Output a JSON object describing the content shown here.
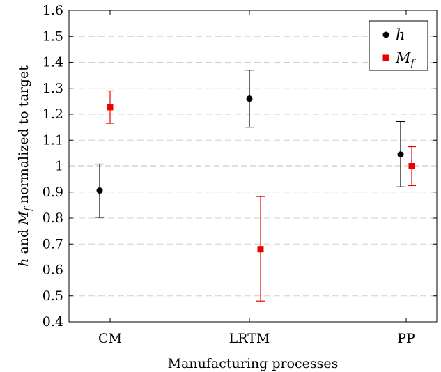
{
  "chart_data": {
    "type": "scatter",
    "categories": [
      "CM",
      "LRTM",
      "PP"
    ],
    "series": [
      {
        "name": "h",
        "label_main": "h",
        "label_sub": "",
        "color": "#000000",
        "marker": "circle",
        "values": [
          0.906,
          1.26,
          1.045
        ],
        "err_low": [
          0.803,
          1.15,
          0.92
        ],
        "err_high": [
          1.008,
          1.37,
          1.172
        ]
      },
      {
        "name": "Mf",
        "label_main": "M",
        "label_sub": "f",
        "color": "#ee0000",
        "marker": "square",
        "values": [
          1.227,
          0.68,
          1.0
        ],
        "err_low": [
          1.165,
          0.48,
          0.925
        ],
        "err_high": [
          1.29,
          0.883,
          1.075
        ]
      }
    ],
    "xlabel": "Manufacturing processes",
    "ylabel_parts": [
      "h",
      " and ",
      "M",
      "f",
      " normalized to target"
    ],
    "ylim": [
      0.4,
      1.6
    ],
    "yticks": [
      "0.4",
      "0.5",
      "0.6",
      "0.7",
      "0.8",
      "0.9",
      "1",
      "1.1",
      "1.2",
      "1.3",
      "1.4",
      "1.5",
      "1.6"
    ],
    "reference_line": 1.0,
    "grid": "horizontal-dashed",
    "legend_position": "top-right"
  }
}
